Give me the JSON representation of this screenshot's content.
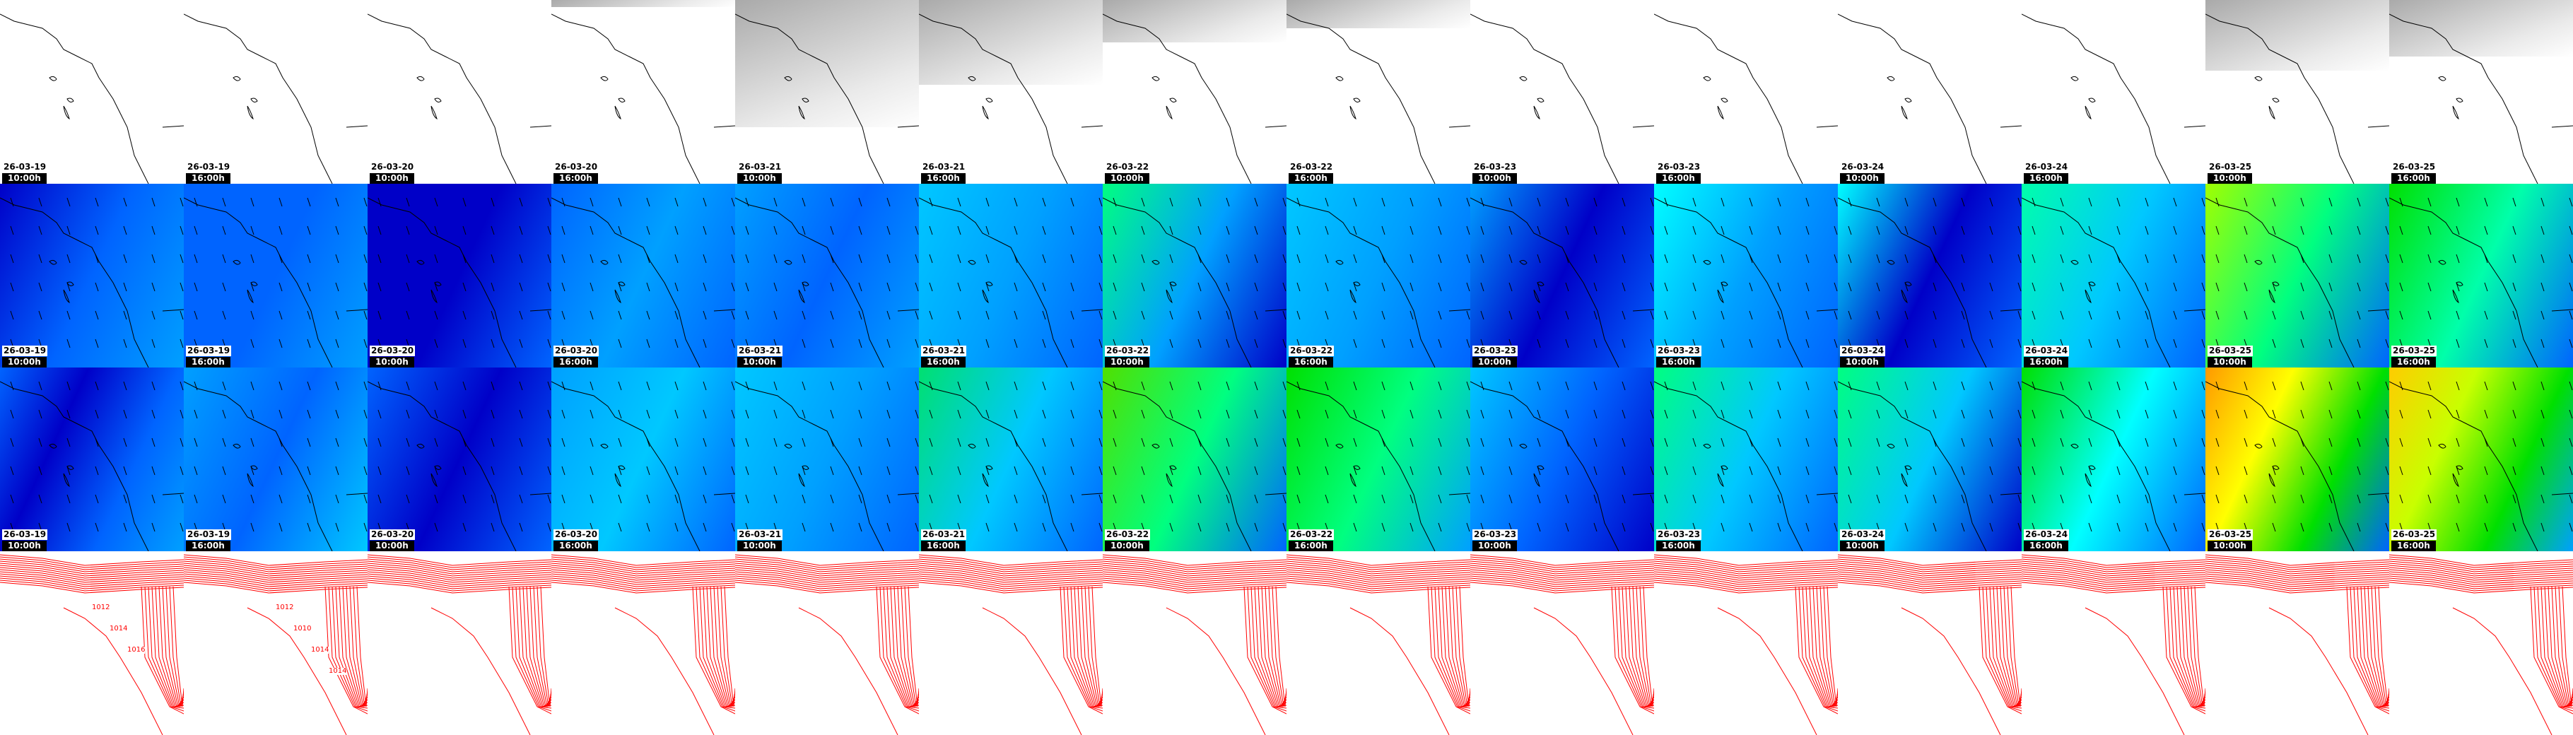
{
  "frames": [
    {
      "date": "26-03-19",
      "time": "10:00h",
      "cloud": 0,
      "wind": [
        "#0000c8",
        "#0064ff",
        "#00a0ff"
      ],
      "gust": [
        "#0064ff",
        "#0000c8",
        "#0064ff",
        "#00a0ff"
      ]
    },
    {
      "date": "26-03-19",
      "time": "16:00h",
      "cloud": 0,
      "wind": [
        "#0064ff",
        "#0064ff",
        "#00a0ff"
      ],
      "gust": [
        "#00a0ff",
        "#0064ff",
        "#00c8ff"
      ]
    },
    {
      "date": "26-03-20",
      "time": "10:00h",
      "cloud": 0,
      "wind": [
        "#0000c8",
        "#0000c8",
        "#0064ff"
      ],
      "gust": [
        "#0064ff",
        "#0000c8",
        "#0064ff"
      ]
    },
    {
      "date": "26-03-20",
      "time": "16:00h",
      "cloud": 0.05,
      "wind": [
        "#0064ff",
        "#00a0ff",
        "#0064ff"
      ],
      "gust": [
        "#00a0ff",
        "#00c8ff",
        "#0064ff"
      ]
    },
    {
      "date": "26-03-21",
      "time": "10:00h",
      "cloud": 0.9,
      "wind": [
        "#00a0ff",
        "#0064ff",
        "#00a0ff"
      ],
      "gust": [
        "#00c8ff",
        "#00a0ff",
        "#0064ff"
      ]
    },
    {
      "date": "26-03-21",
      "time": "16:00h",
      "cloud": 0.6,
      "wind": [
        "#00c8ff",
        "#00a0ff",
        "#0064ff"
      ],
      "gust": [
        "#00e070",
        "#00c8ff",
        "#0064ff"
      ]
    },
    {
      "date": "26-03-22",
      "time": "10:00h",
      "cloud": 0.3,
      "wind": [
        "#00ff80",
        "#00a0ff",
        "#0000c8"
      ],
      "gust": [
        "#50e000",
        "#00ff80",
        "#0064ff"
      ]
    },
    {
      "date": "26-03-22",
      "time": "16:00h",
      "cloud": 0.2,
      "wind": [
        "#00c8ff",
        "#00a0ff",
        "#0064ff"
      ],
      "gust": [
        "#00e000",
        "#00ff80",
        "#00a0ff"
      ]
    },
    {
      "date": "26-03-23",
      "time": "10:00h",
      "cloud": 0,
      "wind": [
        "#00a0ff",
        "#0000c8",
        "#0064ff"
      ],
      "gust": [
        "#00c8ff",
        "#0064ff",
        "#0000c8"
      ]
    },
    {
      "date": "26-03-23",
      "time": "16:00h",
      "cloud": 0,
      "wind": [
        "#00ffff",
        "#00a0ff",
        "#0064ff"
      ],
      "gust": [
        "#00ff80",
        "#00c8ff",
        "#0064ff"
      ]
    },
    {
      "date": "26-03-24",
      "time": "10:00h",
      "cloud": 0,
      "wind": [
        "#00ffff",
        "#0000c8",
        "#0064ff"
      ],
      "gust": [
        "#00ff80",
        "#00c8ff",
        "#0000c8"
      ]
    },
    {
      "date": "26-03-24",
      "time": "16:00h",
      "cloud": 0,
      "wind": [
        "#00ffaa",
        "#00c8ff",
        "#0064ff"
      ],
      "gust": [
        "#00e000",
        "#00ffff",
        "#0064ff"
      ]
    },
    {
      "date": "26-03-25",
      "time": "10:00h",
      "cloud": 0.5,
      "wind": [
        "#a0ff00",
        "#00ff80",
        "#0064ff"
      ],
      "gust": [
        "#ff9900",
        "#ffff00",
        "#00e000",
        "#0064ff"
      ]
    },
    {
      "date": "26-03-25",
      "time": "16:00h",
      "cloud": 0.4,
      "wind": [
        "#00e000",
        "#00ffaa",
        "#0064ff"
      ],
      "gust": [
        "#ffcc00",
        "#c8ff00",
        "#00e000",
        "#00a0ff"
      ]
    }
  ],
  "pressure_labels": [
    [
      "1012",
      "1014",
      "1016"
    ],
    [
      "1012",
      "1010",
      "1014",
      "1014"
    ],
    [],
    [],
    [],
    [],
    [],
    [],
    [],
    [],
    [],
    [],
    [],
    []
  ],
  "colors": {
    "pressure": "#ff0000",
    "coast": "#000000",
    "cloud": "#a0a0a0"
  }
}
